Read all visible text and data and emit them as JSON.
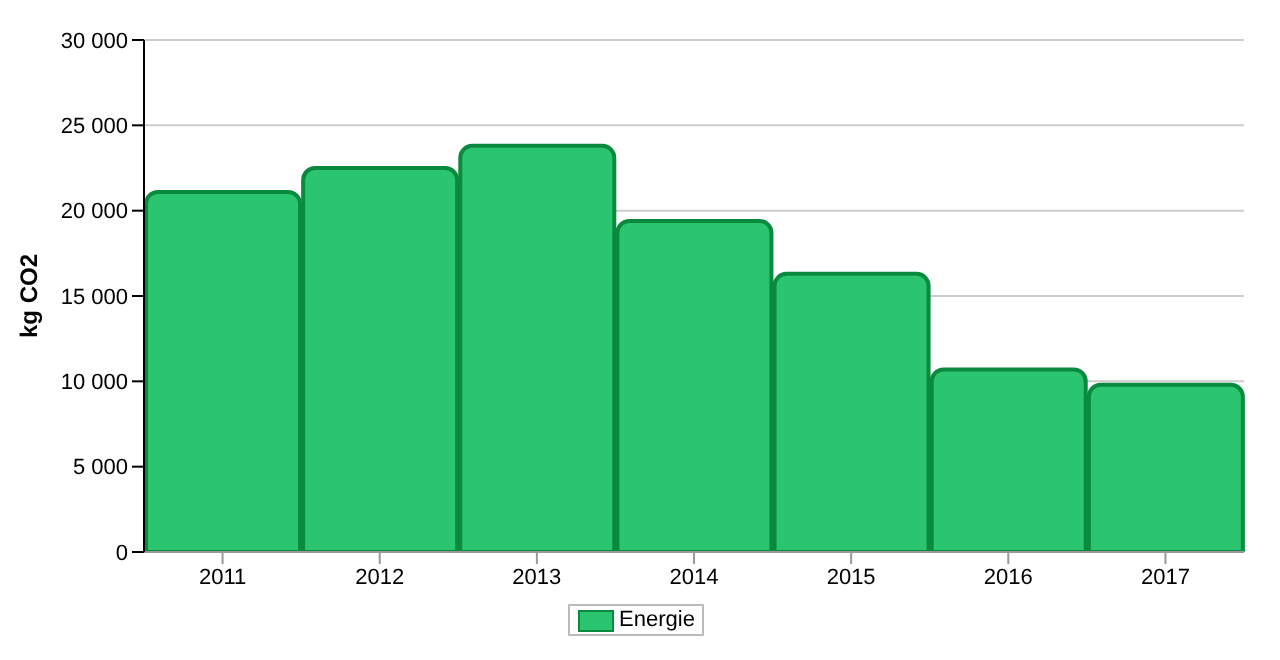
{
  "chart_data": {
    "type": "bar",
    "ylabel": "kg CO2",
    "categories": [
      "2011",
      "2012",
      "2013",
      "2014",
      "2015",
      "2016",
      "2017"
    ],
    "series": [
      {
        "name": "Energie",
        "color": "#2cc56f",
        "values": [
          21100,
          22500,
          23800,
          19400,
          16300,
          10700,
          9800
        ]
      }
    ],
    "ylim": [
      0,
      30000
    ],
    "yticks": [
      0,
      {
        "value": 5000,
        "label": "5 000"
      },
      {
        "value": 10000,
        "label": "10 000"
      },
      {
        "value": 15000,
        "label": "15 000"
      },
      {
        "value": 20000,
        "label": "20 000"
      },
      {
        "value": 25000,
        "label": "25 000"
      },
      {
        "value": 30000,
        "label": "30 000"
      }
    ],
    "grid": "y",
    "legend": "bottom"
  }
}
